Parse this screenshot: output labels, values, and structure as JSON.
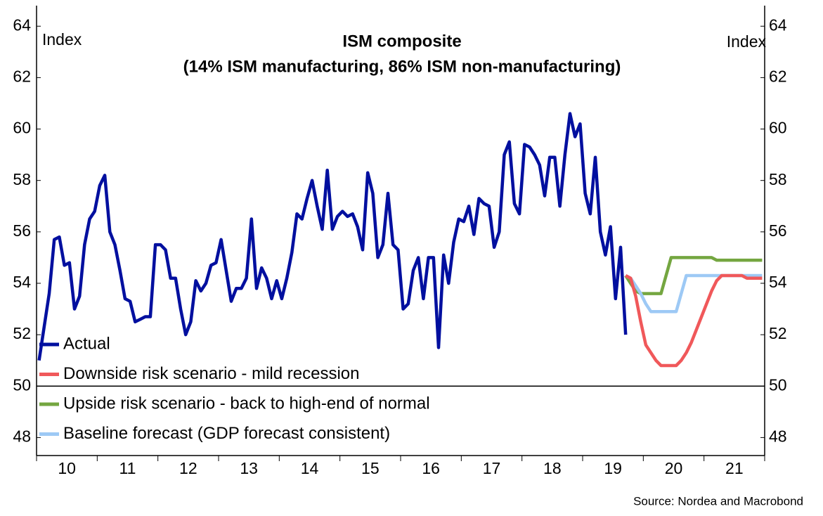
{
  "chart_data": {
    "type": "line",
    "title": "ISM composite",
    "subtitle": "(14% ISM manufacturing, 86% ISM non-manufacturing)",
    "y_label": "Index",
    "y2_label": "Index",
    "source": "Source: Nordea and Macrobond",
    "ylim": [
      47.3,
      64.8
    ],
    "yticks": [
      48,
      50,
      52,
      54,
      56,
      58,
      60,
      62,
      64
    ],
    "y2lim": [
      47.3,
      64.8
    ],
    "y2ticks": [
      48,
      50,
      52,
      54,
      56,
      58,
      60,
      62,
      64
    ],
    "hline": 50,
    "legend": "lower left",
    "categories": [
      null,
      null,
      null,
      null,
      null,
      null,
      "10",
      null,
      null,
      null,
      null,
      null,
      null,
      null,
      null,
      null,
      null,
      null,
      "11",
      null,
      null,
      null,
      null,
      null,
      null,
      null,
      null,
      null,
      null,
      null,
      "12",
      null,
      null,
      null,
      null,
      null,
      null,
      null,
      null,
      null,
      null,
      null,
      "13",
      null,
      null,
      null,
      null,
      null,
      null,
      null,
      null,
      null,
      null,
      null,
      "14",
      null,
      null,
      null,
      null,
      null,
      null,
      null,
      null,
      null,
      null,
      null,
      "15",
      null,
      null,
      null,
      null,
      null,
      null,
      null,
      null,
      null,
      null,
      null,
      "16",
      null,
      null,
      null,
      null,
      null,
      null,
      null,
      null,
      null,
      null,
      null,
      "17",
      null,
      null,
      null,
      null,
      null,
      null,
      null,
      null,
      null,
      null,
      null,
      "18",
      null,
      null,
      null,
      null,
      null,
      null,
      null,
      null,
      null,
      null,
      null,
      "19",
      null,
      null,
      null,
      null,
      null,
      null,
      null,
      null,
      null,
      null,
      null,
      "20",
      null,
      null,
      null,
      null,
      null,
      null,
      null,
      null,
      null,
      null,
      null,
      "21",
      null,
      null,
      null,
      null,
      null
    ],
    "series": [
      {
        "name": "Actual",
        "color": "#000f9f",
        "values": [
          51.0,
          52.3,
          53.6,
          55.7,
          55.8,
          54.7,
          54.8,
          53.0,
          53.5,
          55.5,
          56.5,
          56.8,
          57.8,
          58.2,
          56.0,
          55.5,
          54.5,
          53.4,
          53.3,
          52.5,
          52.6,
          52.7,
          52.7,
          55.5,
          55.5,
          55.3,
          54.2,
          54.2,
          53.0,
          52.0,
          52.5,
          54.1,
          53.7,
          54.0,
          54.7,
          54.8,
          55.7,
          54.5,
          53.3,
          53.8,
          53.8,
          54.2,
          56.5,
          53.8,
          54.6,
          54.2,
          53.4,
          54.1,
          53.4,
          54.2,
          55.2,
          56.7,
          56.5,
          57.3,
          58.0,
          57.0,
          56.1,
          58.4,
          56.1,
          56.6,
          56.8,
          56.6,
          56.7,
          56.2,
          55.3,
          58.3,
          57.5,
          55.0,
          55.5,
          57.5,
          55.5,
          55.3,
          53.0,
          53.2,
          54.5,
          55.0,
          53.4,
          55.0,
          55.0,
          51.5,
          55.1,
          54.0,
          55.6,
          56.5,
          56.4,
          57.0,
          55.9,
          57.3,
          57.1,
          57.0,
          55.4,
          56.0,
          59.0,
          59.5,
          57.1,
          56.7,
          59.4,
          59.3,
          59.0,
          58.6,
          57.4,
          58.9,
          58.9,
          57.0,
          59.0,
          60.6,
          59.7,
          60.2,
          57.5,
          56.7,
          58.9,
          56.0,
          55.1,
          56.2,
          53.4,
          55.4,
          52.0,
          null,
          null,
          null,
          null,
          null,
          null,
          null,
          null,
          null,
          null,
          null,
          null,
          null,
          null,
          null,
          null,
          null,
          null,
          null,
          null,
          null,
          null,
          null,
          null,
          null,
          null,
          null
        ]
      },
      {
        "name": "Downside risk scenario - mild recession",
        "color": "#f0585a",
        "values": [
          null,
          null,
          null,
          null,
          null,
          null,
          null,
          null,
          null,
          null,
          null,
          null,
          null,
          null,
          null,
          null,
          null,
          null,
          null,
          null,
          null,
          null,
          null,
          null,
          null,
          null,
          null,
          null,
          null,
          null,
          null,
          null,
          null,
          null,
          null,
          null,
          null,
          null,
          null,
          null,
          null,
          null,
          null,
          null,
          null,
          null,
          null,
          null,
          null,
          null,
          null,
          null,
          null,
          null,
          null,
          null,
          null,
          null,
          null,
          null,
          null,
          null,
          null,
          null,
          null,
          null,
          null,
          null,
          null,
          null,
          null,
          null,
          null,
          null,
          null,
          null,
          null,
          null,
          null,
          null,
          null,
          null,
          null,
          null,
          null,
          null,
          null,
          null,
          null,
          null,
          null,
          null,
          null,
          null,
          null,
          null,
          null,
          null,
          null,
          null,
          null,
          null,
          null,
          null,
          null,
          null,
          null,
          null,
          null,
          null,
          null,
          null,
          null,
          null,
          null,
          null,
          54.3,
          54.2,
          53.5,
          52.5,
          51.6,
          51.3,
          51.0,
          50.8,
          50.8,
          50.8,
          50.8,
          51.0,
          51.3,
          51.7,
          52.2,
          52.7,
          53.2,
          53.7,
          54.1,
          54.3,
          54.3,
          54.3,
          54.3,
          54.3,
          54.2,
          54.2,
          54.2,
          54.2
        ]
      },
      {
        "name": "Upside risk scenario - back to high-end of normal",
        "color": "#74a640",
        "values": [
          null,
          null,
          null,
          null,
          null,
          null,
          null,
          null,
          null,
          null,
          null,
          null,
          null,
          null,
          null,
          null,
          null,
          null,
          null,
          null,
          null,
          null,
          null,
          null,
          null,
          null,
          null,
          null,
          null,
          null,
          null,
          null,
          null,
          null,
          null,
          null,
          null,
          null,
          null,
          null,
          null,
          null,
          null,
          null,
          null,
          null,
          null,
          null,
          null,
          null,
          null,
          null,
          null,
          null,
          null,
          null,
          null,
          null,
          null,
          null,
          null,
          null,
          null,
          null,
          null,
          null,
          null,
          null,
          null,
          null,
          null,
          null,
          null,
          null,
          null,
          null,
          null,
          null,
          null,
          null,
          null,
          null,
          null,
          null,
          null,
          null,
          null,
          null,
          null,
          null,
          null,
          null,
          null,
          null,
          null,
          null,
          null,
          null,
          null,
          null,
          null,
          null,
          null,
          null,
          null,
          null,
          null,
          null,
          null,
          null,
          null,
          null,
          null,
          null,
          null,
          null,
          54.3,
          54.0,
          53.7,
          53.6,
          53.6,
          53.6,
          53.6,
          53.6,
          54.3,
          55.0,
          55.0,
          55.0,
          55.0,
          55.0,
          55.0,
          55.0,
          55.0,
          55.0,
          54.9,
          54.9,
          54.9,
          54.9,
          54.9,
          54.9,
          54.9,
          54.9,
          54.9,
          54.9
        ]
      },
      {
        "name": "Baseline forecast (GDP forecast consistent)",
        "color": "#9dc9f5",
        "values": [
          null,
          null,
          null,
          null,
          null,
          null,
          null,
          null,
          null,
          null,
          null,
          null,
          null,
          null,
          null,
          null,
          null,
          null,
          null,
          null,
          null,
          null,
          null,
          null,
          null,
          null,
          null,
          null,
          null,
          null,
          null,
          null,
          null,
          null,
          null,
          null,
          null,
          null,
          null,
          null,
          null,
          null,
          null,
          null,
          null,
          null,
          null,
          null,
          null,
          null,
          null,
          null,
          null,
          null,
          null,
          null,
          null,
          null,
          null,
          null,
          null,
          null,
          null,
          null,
          null,
          null,
          null,
          null,
          null,
          null,
          null,
          null,
          null,
          null,
          null,
          null,
          null,
          null,
          null,
          null,
          null,
          null,
          null,
          null,
          null,
          null,
          null,
          null,
          null,
          null,
          null,
          null,
          null,
          null,
          null,
          null,
          null,
          null,
          null,
          null,
          null,
          null,
          null,
          null,
          null,
          null,
          null,
          null,
          null,
          null,
          null,
          null,
          null,
          null,
          null,
          null,
          54.3,
          54.2,
          53.9,
          53.6,
          53.2,
          52.9,
          52.9,
          52.9,
          52.9,
          52.9,
          52.9,
          53.6,
          54.3,
          54.3,
          54.3,
          54.3,
          54.3,
          54.3,
          54.3,
          54.3,
          54.3,
          54.3,
          54.3,
          54.3,
          54.3,
          54.3,
          54.3,
          54.3
        ]
      }
    ]
  }
}
